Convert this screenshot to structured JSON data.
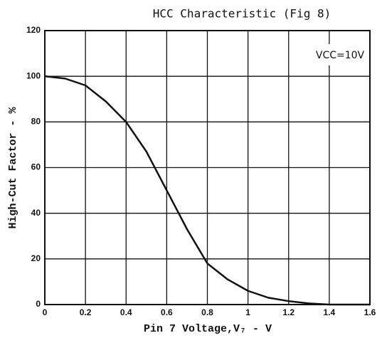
{
  "chart_data": {
    "type": "line",
    "title": "HCC Characteristic (Fig 8)",
    "xlabel": "Pin 7 Voltage,V₇ - V",
    "ylabel": "High-Cut Factor - %",
    "annotation": "VCC=10V",
    "x": [
      0,
      0.1,
      0.2,
      0.3,
      0.4,
      0.5,
      0.6,
      0.7,
      0.8,
      0.9,
      1.0,
      1.1,
      1.2,
      1.3,
      1.4,
      1.5,
      1.6
    ],
    "series": [
      {
        "name": "High-Cut Factor",
        "color": "#111111",
        "values": [
          100,
          99,
          96,
          89,
          80,
          67,
          50,
          33,
          18,
          11,
          6,
          3,
          1.5,
          0.5,
          0,
          0,
          0
        ]
      }
    ],
    "xlim": [
      0,
      1.6
    ],
    "xticks": [
      0,
      0.2,
      0.4,
      0.6,
      0.8,
      1.0,
      1.2,
      1.4,
      1.6
    ],
    "ylim": [
      0,
      120
    ],
    "yticks": [
      0,
      20,
      40,
      60,
      80,
      100,
      120
    ],
    "grid": true
  }
}
